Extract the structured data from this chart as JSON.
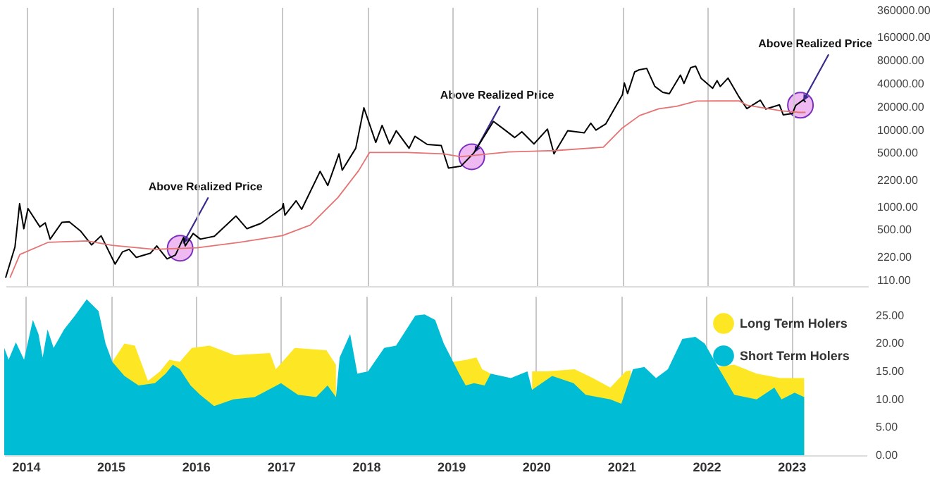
{
  "chart_data": [
    {
      "type": "line",
      "xlim": [
        "2013-10-01",
        "2023-11-20"
      ],
      "xticks": [
        "2014",
        "2015",
        "2016",
        "2017",
        "2018",
        "2019",
        "2020",
        "2021",
        "2022",
        "2023"
      ],
      "ylim": [
        93,
        400000
      ],
      "yticks": [
        {
          "value": 110,
          "label": "110.00"
        },
        {
          "value": 220,
          "label": "220.00"
        },
        {
          "value": 500,
          "label": "500.00"
        },
        {
          "value": 1000,
          "label": "1000.00"
        },
        {
          "value": 2200,
          "label": "2200.00"
        },
        {
          "value": 5000,
          "label": "5000.00"
        },
        {
          "value": 10000,
          "label": "10000.00"
        },
        {
          "value": 20000,
          "label": "20000.00"
        },
        {
          "value": 40000,
          "label": "40000.00"
        },
        {
          "value": 80000,
          "label": "80000.00"
        },
        {
          "value": 160000,
          "label": "160000.00"
        },
        {
          "value": 360000,
          "label": "360000.00"
        }
      ],
      "log": true,
      "grid": "x",
      "tick_labels": "y",
      "annotations": [
        {
          "text": "Above Realized Price",
          "x": "2015-10-20",
          "y": 290
        },
        {
          "text": "Above Realized Price",
          "x": "2019-03-25",
          "y": 4500
        },
        {
          "text": "Above Realized Price",
          "x": "2023-02-03",
          "y": 21100
        }
      ],
      "series": [
        {
          "color": "#000000",
          "x": [
            "2013-10-01",
            "2013-11-10",
            "2013-11-30",
            "2013-12-18",
            "2014-01-05",
            "2014-02-25",
            "2014-03-20",
            "2014-04-10",
            "2014-05-31",
            "2014-07-01",
            "2014-08-20",
            "2014-10-05",
            "2014-11-15",
            "2015-01-14",
            "2015-02-15",
            "2015-03-15",
            "2015-04-15",
            "2015-06-15",
            "2015-07-12",
            "2015-08-25",
            "2015-09-30",
            "2015-11-04",
            "2015-11-11",
            "2015-12-15",
            "2016-01-15",
            "2016-03-15",
            "2016-06-16",
            "2016-08-02",
            "2016-10-01",
            "2016-12-31",
            "2017-01-05",
            "2017-01-12",
            "2017-03-01",
            "2017-03-25",
            "2017-06-12",
            "2017-07-15",
            "2017-09-01",
            "2017-09-15",
            "2017-11-12",
            "2017-12-17",
            "2018-02-06",
            "2018-03-05",
            "2018-04-06",
            "2018-05-05",
            "2018-06-29",
            "2018-07-24",
            "2018-09-15",
            "2018-11-14",
            "2018-12-15",
            "2019-02-07",
            "2019-04-02",
            "2019-06-26",
            "2019-08-15",
            "2019-09-25",
            "2019-10-26",
            "2019-12-17",
            "2020-02-13",
            "2020-03-12",
            "2020-05-10",
            "2020-07-20",
            "2020-08-17",
            "2020-09-08",
            "2020-10-20",
            "2020-12-31",
            "2021-01-08",
            "2021-01-22",
            "2021-02-21",
            "2021-03-13",
            "2021-04-14",
            "2021-05-19",
            "2021-06-22",
            "2021-07-20",
            "2021-09-06",
            "2021-09-21",
            "2021-10-20",
            "2021-11-10",
            "2021-12-04",
            "2022-01-22",
            "2022-02-10",
            "2022-02-24",
            "2022-03-29",
            "2022-05-12",
            "2022-06-18",
            "2022-08-15",
            "2022-09-07",
            "2022-11-05",
            "2022-11-21",
            "2022-12-31",
            "2023-01-14",
            "2023-02-16",
            "2023-02-25"
          ],
          "values": [
            120,
            300,
            1100,
            520,
            950,
            550,
            620,
            380,
            630,
            640,
            480,
            320,
            420,
            180,
            260,
            280,
            220,
            250,
            310,
            210,
            236,
            400,
            310,
            450,
            380,
            415,
            760,
            520,
            610,
            960,
            1100,
            780,
            1200,
            930,
            2900,
            1900,
            4900,
            3000,
            5800,
            19500,
            6900,
            11500,
            6600,
            9800,
            5800,
            8300,
            6500,
            6300,
            3200,
            3400,
            5000,
            13000,
            10000,
            8000,
            9500,
            6600,
            10300,
            4900,
            9800,
            9200,
            12300,
            10000,
            12000,
            29000,
            41000,
            30000,
            57000,
            61000,
            63500,
            37000,
            31000,
            29800,
            52000,
            40500,
            65000,
            68000,
            47000,
            35000,
            44000,
            37000,
            47500,
            28000,
            19000,
            24500,
            18800,
            21300,
            15800,
            16500,
            21000,
            24800,
            23000
          ]
        },
        {
          "color": "#e57373",
          "x": [
            "2013-10-20",
            "2013-12-01",
            "2014-04-01",
            "2014-09-15",
            "2015-01-01",
            "2015-07-01",
            "2016-01-01",
            "2016-07-01",
            "2017-01-01",
            "2017-05-01",
            "2017-08-28",
            "2017-11-25",
            "2018-01-10",
            "2018-06-20",
            "2018-11-25",
            "2019-02-05",
            "2019-08-30",
            "2020-03-15",
            "2020-10-10",
            "2020-12-28",
            "2021-03-15",
            "2021-06-05",
            "2021-08-20",
            "2021-11-15",
            "2022-05-15",
            "2022-06-20",
            "2022-11-15",
            "2023-01-30",
            "2023-02-25"
          ],
          "values": [
            120,
            240,
            345,
            360,
            316,
            280,
            293,
            345,
            422,
            580,
            1330,
            2980,
            5100,
            5100,
            4900,
            4500,
            5200,
            5400,
            6000,
            10500,
            15500,
            18900,
            20400,
            23900,
            24000,
            21000,
            17800,
            17000,
            17000
          ]
        }
      ]
    },
    {
      "type": "area",
      "xlim": [
        "2013-10-01",
        "2023-11-20"
      ],
      "xticks": [
        "2014",
        "2015",
        "2016",
        "2017",
        "2018",
        "2019",
        "2020",
        "2021",
        "2022",
        "2023"
      ],
      "ylim": [
        0,
        28.5
      ],
      "yticks": [
        {
          "value": 0,
          "label": "0.00"
        },
        {
          "value": 5,
          "label": "5.00"
        },
        {
          "value": 10,
          "label": "10.00"
        },
        {
          "value": 15,
          "label": "15.00"
        },
        {
          "value": 20,
          "label": "20.00"
        },
        {
          "value": 25,
          "label": "25.00"
        }
      ],
      "grid": "x",
      "legend": "top right",
      "series": [
        {
          "name": "Long Term Holers",
          "color": "#fde725",
          "x": [
            "2015-01-08",
            "2015-03-01",
            "2015-04-15",
            "2015-06-10",
            "2015-08-01",
            "2015-09-10",
            "2015-10-25",
            "2015-12-15",
            "2016-03-01",
            "2016-06-15",
            "2016-11-15",
            "2016-12-10",
            "2017-03-01",
            "2017-07-15",
            "2017-08-25",
            "2017-09-05",
            "2019-01-10",
            "2019-03-10",
            "2019-04-20",
            "2019-05-15",
            "2019-06-20",
            "2019-06-25",
            "2019-12-15",
            "2020-02-15",
            "2020-06-15",
            "2020-09-01",
            "2020-11-15",
            "2021-01-20",
            "2021-02-10",
            "2021-02-25",
            "2022-02-20",
            "2022-05-01",
            "2022-08-05",
            "2022-11-15",
            "2023-02-25"
          ],
          "values": [
            16.7,
            20.0,
            19.6,
            13.3,
            15.0,
            17.1,
            16.7,
            19.2,
            19.6,
            17.9,
            18.3,
            15.4,
            19.2,
            18.8,
            16.2,
            null,
            16.7,
            17.1,
            17.5,
            15.4,
            14.6,
            null,
            15.0,
            15.0,
            15.4,
            13.8,
            12.1,
            15.0,
            15.2,
            null,
            15.8,
            16.2,
            14.6,
            13.8,
            13.8
          ]
        },
        {
          "name": "Short Term Holers",
          "color": "#00bcd4",
          "x": [
            "2013-10-01",
            "2013-10-20",
            "2013-11-20",
            "2013-12-25",
            "2014-02-01",
            "2014-02-25",
            "2014-03-15",
            "2014-04-05",
            "2014-05-01",
            "2014-06-15",
            "2014-08-01",
            "2014-09-20",
            "2014-11-10",
            "2014-12-10",
            "2015-01-08",
            "2015-03-01",
            "2015-05-01",
            "2015-07-10",
            "2015-08-25",
            "2015-09-25",
            "2015-10-25",
            "2015-12-10",
            "2016-01-20",
            "2016-03-20",
            "2016-06-10",
            "2016-09-10",
            "2017-01-01",
            "2017-03-15",
            "2017-06-01",
            "2017-07-20",
            "2017-08-25",
            "2017-09-10",
            "2017-10-25",
            "2017-11-25",
            "2018-01-10",
            "2018-03-20",
            "2018-05-10",
            "2018-08-01",
            "2018-09-10",
            "2018-10-25",
            "2018-12-01",
            "2019-02-05",
            "2019-03-05",
            "2019-04-10",
            "2019-05-25",
            "2019-06-20",
            "2019-09-15",
            "2019-11-25",
            "2019-12-15",
            "2020-03-10",
            "2020-06-10",
            "2020-08-01",
            "2020-11-15",
            "2021-01-01",
            "2021-02-20",
            "2021-04-10",
            "2021-05-30",
            "2021-07-20",
            "2021-09-20",
            "2021-11-15",
            "2021-12-25",
            "2022-02-20",
            "2022-05-01",
            "2022-08-05",
            "2022-10-20",
            "2022-11-20",
            "2023-01-15",
            "2023-02-25"
          ],
          "values": [
            19.2,
            17.1,
            20.2,
            17.1,
            24.2,
            21.7,
            17.5,
            22.5,
            19.2,
            22.5,
            25.0,
            27.9,
            25.8,
            20.0,
            16.7,
            14.2,
            12.5,
            12.9,
            14.6,
            16.2,
            15.4,
            12.5,
            10.8,
            8.8,
            10.0,
            10.4,
            12.9,
            10.8,
            10.4,
            12.5,
            10.4,
            17.5,
            21.7,
            14.6,
            15.0,
            19.2,
            19.6,
            25.0,
            25.2,
            24.2,
            20.0,
            14.6,
            12.5,
            12.9,
            12.5,
            14.6,
            13.8,
            15.0,
            11.7,
            14.2,
            12.9,
            10.8,
            10.0,
            9.2,
            15.4,
            15.8,
            13.8,
            15.4,
            20.8,
            21.2,
            20.0,
            15.8,
            10.8,
            10.0,
            12.1,
            10.0,
            11.2,
            10.4
          ]
        }
      ]
    }
  ]
}
